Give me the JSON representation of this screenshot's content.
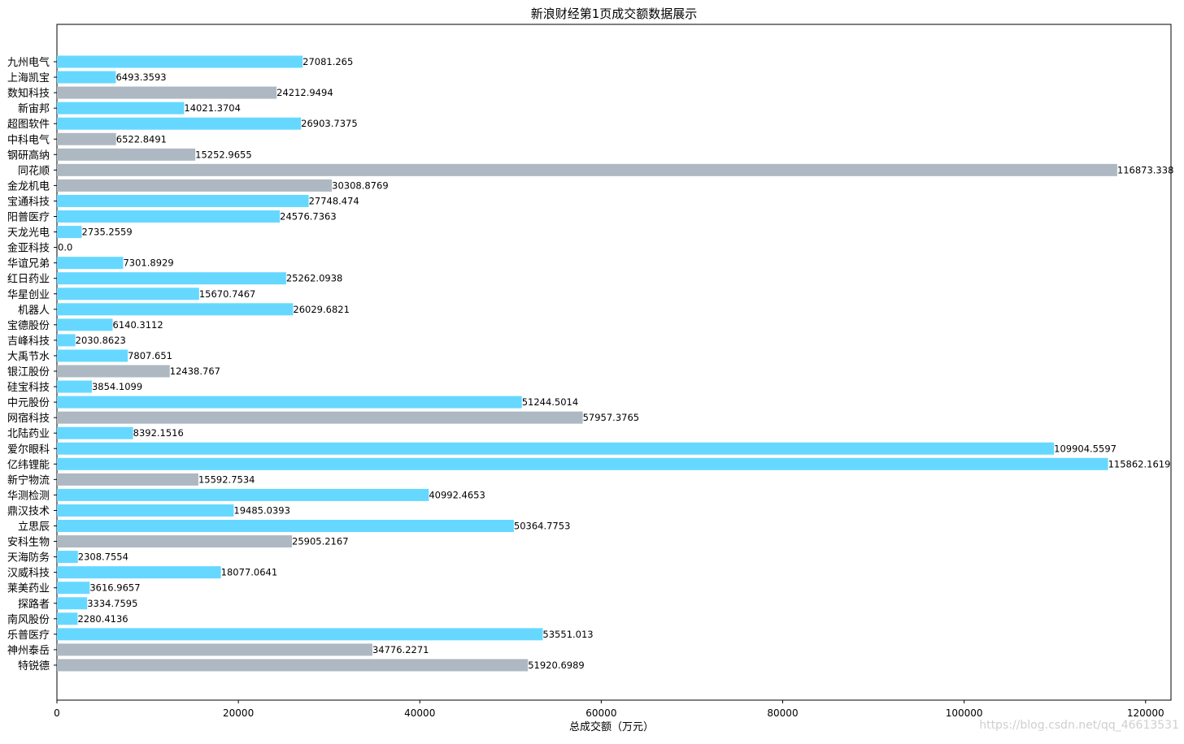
{
  "chart_data": {
    "type": "bar",
    "orientation": "horizontal",
    "title": "新浪财经第1页成交额数据展示",
    "xlabel": "总成交额（万元）",
    "ylabel": "",
    "xlim": [
      0,
      122800
    ],
    "xticks": [
      0,
      20000,
      40000,
      60000,
      80000,
      100000,
      120000
    ],
    "grid": false,
    "legend": "none",
    "colors": {
      "up": "#66d8ff",
      "down": "#adb8c2"
    },
    "categories": [
      "九州电气",
      "上海凯宝",
      "数知科技",
      "新宙邦",
      "超图软件",
      "中科电气",
      "钢研高纳",
      "同花顺",
      "金龙机电",
      "宝通科技",
      "阳普医疗",
      "天龙光电",
      "金亚科技",
      "华谊兄弟",
      "红日药业",
      "华星创业",
      "机器人",
      "宝德股份",
      "吉峰科技",
      "大禹节水",
      "银江股份",
      "硅宝科技",
      "中元股份",
      "网宿科技",
      "北陆药业",
      "爱尔眼科",
      "亿纬锂能",
      "新宁物流",
      "华测检测",
      "鼎汉技术",
      "立思辰",
      "安科生物",
      "天海防务",
      "汉威科技",
      "莱美药业",
      "探路者",
      "南风股份",
      "乐普医疗",
      "神州泰岳",
      "特锐德"
    ],
    "values": [
      27081.265,
      6493.3593,
      24212.9494,
      14021.3704,
      26903.7375,
      6522.8491,
      15252.9655,
      116873.338,
      30308.8769,
      27748.474,
      24576.7363,
      2735.2559,
      0.0,
      7301.8929,
      25262.0938,
      15670.7467,
      26029.6821,
      6140.3112,
      2030.8623,
      7807.651,
      12438.767,
      3854.1099,
      51244.5014,
      57957.3765,
      8392.1516,
      109904.5597,
      115862.1619,
      15592.7534,
      40992.4653,
      19485.0393,
      50364.7753,
      25905.2167,
      2308.7554,
      18077.0641,
      3616.9657,
      3334.7595,
      2280.4136,
      53551.013,
      34776.2271,
      51920.6989
    ],
    "labels": [
      "27081.265",
      "6493.3593",
      "24212.9494",
      "14021.3704",
      "26903.7375",
      "6522.8491",
      "15252.9655",
      "116873.338",
      "30308.8769",
      "27748.474",
      "24576.7363",
      "2735.2559",
      "0.0",
      "7301.8929",
      "25262.0938",
      "15670.7467",
      "26029.6821",
      "6140.3112",
      "2030.8623",
      "7807.651",
      "12438.767",
      "3854.1099",
      "51244.5014",
      "57957.3765",
      "8392.1516",
      "109904.5597",
      "115862.1619",
      "15592.7534",
      "40992.4653",
      "19485.0393",
      "50364.7753",
      "25905.2167",
      "2308.7554",
      "18077.0641",
      "3616.9657",
      "3334.7595",
      "2280.4136",
      "53551.013",
      "34776.2271",
      "51920.6989"
    ],
    "bar_colors": [
      "up",
      "up",
      "down",
      "up",
      "up",
      "down",
      "down",
      "down",
      "down",
      "up",
      "up",
      "up",
      "up",
      "up",
      "up",
      "up",
      "up",
      "up",
      "up",
      "up",
      "down",
      "up",
      "up",
      "down",
      "up",
      "up",
      "up",
      "down",
      "up",
      "up",
      "up",
      "down",
      "up",
      "up",
      "up",
      "up",
      "up",
      "up",
      "down",
      "down"
    ]
  },
  "watermark": "https://blog.csdn.net/qq_46613531"
}
